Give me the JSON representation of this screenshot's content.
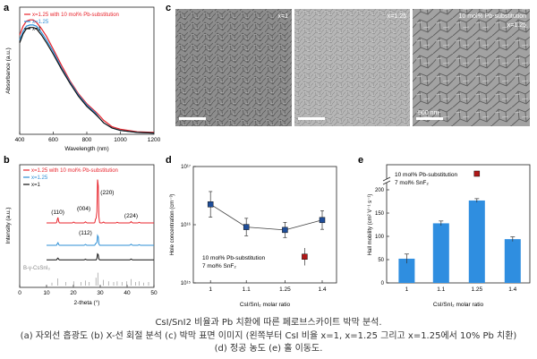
{
  "panels": {
    "a": "a",
    "b": "b",
    "c": "c",
    "d": "d",
    "e": "e"
  },
  "colors": {
    "red": "#e8232b",
    "blue": "#2d8fd6",
    "black": "#111111",
    "bar": "#2f8ee0",
    "square": "#1f4e9a",
    "square_red": "#b01818"
  },
  "sem": {
    "labels": [
      "x=1",
      "x=1.25",
      "10 mol% Pb-substitution"
    ],
    "sub_label": "x=1.25",
    "scale": "500 nm"
  },
  "captions": {
    "line1": "CsI/SnI2 비율과 Pb 치환에 따른 페로브스카이트 박막 분석.",
    "line2": "(a) 자외선 흡광도 (b) X-선 회절 분석 (c) 박막 표면 이미지 (왼쪽부터 CsI 비율 x=1, x=1.25 그리고 x=1.25에서 10% Pb 치환)",
    "line3": "(d) 정공 농도 (e) 홀 이동도."
  },
  "chart_data": [
    {
      "id": "a",
      "type": "line",
      "title": "",
      "xlabel": "Wavelength (nm)",
      "ylabel": "Absorbance (a.u.)",
      "xlim": [
        400,
        1200
      ],
      "xticks": [
        400,
        600,
        800,
        1000,
        1200
      ],
      "ylim": [
        0,
        1
      ],
      "legend": "top-left",
      "legend_labels": [
        "x=1.25 with 10 mol% Pb-substitution",
        "x=1.25",
        "x=1"
      ],
      "series": [
        {
          "name": "x=1.25 with 10 mol% Pb-substitution",
          "color": "#e8232b",
          "x": [
            400,
            420,
            440,
            460,
            480,
            500,
            530,
            560,
            600,
            650,
            700,
            750,
            800,
            850,
            880,
            900,
            950,
            1000,
            1100,
            1200
          ],
          "y": [
            0.78,
            0.85,
            0.89,
            0.9,
            0.9,
            0.88,
            0.83,
            0.77,
            0.67,
            0.54,
            0.42,
            0.32,
            0.24,
            0.18,
            0.14,
            0.11,
            0.06,
            0.04,
            0.02,
            0.015
          ]
        },
        {
          "name": "x=1.25",
          "color": "#2d8fd6",
          "x": [
            400,
            420,
            440,
            460,
            480,
            500,
            530,
            560,
            600,
            650,
            700,
            750,
            800,
            850,
            880,
            900,
            950,
            1000,
            1100,
            1200
          ],
          "y": [
            0.74,
            0.81,
            0.85,
            0.86,
            0.86,
            0.85,
            0.8,
            0.74,
            0.65,
            0.52,
            0.41,
            0.31,
            0.23,
            0.17,
            0.12,
            0.09,
            0.05,
            0.03,
            0.015,
            0.01
          ]
        },
        {
          "name": "x=1",
          "color": "#111111",
          "x": [
            400,
            420,
            440,
            460,
            480,
            500,
            530,
            560,
            600,
            650,
            700,
            750,
            800,
            850,
            880,
            900,
            950,
            1000,
            1100,
            1200
          ],
          "y": [
            0.72,
            0.79,
            0.83,
            0.84,
            0.84,
            0.83,
            0.78,
            0.72,
            0.63,
            0.51,
            0.4,
            0.3,
            0.22,
            0.16,
            0.12,
            0.09,
            0.05,
            0.03,
            0.015,
            0.01
          ]
        }
      ]
    },
    {
      "id": "b",
      "type": "line",
      "title": "",
      "xlabel": "2-theta (°)",
      "ylabel": "Intensity (a.u.)",
      "xlim": [
        0,
        50
      ],
      "xticks": [
        0,
        10,
        20,
        30,
        40,
        50
      ],
      "legend": "top-left",
      "legend_labels": [
        "x=1.25 with 10 mol% Pb-substitution",
        "x=1.25",
        "x=1"
      ],
      "ref_label": "B-γ-CsSnI₃",
      "peak_labels": [
        {
          "label": "(110)",
          "x": 14.2
        },
        {
          "label": "(112)",
          "x": 24.5
        },
        {
          "label": "(004)",
          "x": 28.4
        },
        {
          "label": "(220)",
          "x": 29.1
        },
        {
          "label": "(224)",
          "x": 41.5
        }
      ],
      "series": [
        {
          "name": "x=1.25 with 10 mol% Pb-substitution",
          "color": "#e8232b",
          "offset": 2,
          "peaks": [
            [
              14.2,
              0.25
            ],
            [
              20.1,
              0.04
            ],
            [
              24.5,
              0.05
            ],
            [
              28.4,
              0.22
            ],
            [
              29.1,
              2.2
            ],
            [
              31.2,
              0.04
            ],
            [
              36.3,
              0.03
            ],
            [
              41.5,
              0.06
            ],
            [
              44.5,
              0.03
            ]
          ]
        },
        {
          "name": "x=1.25",
          "color": "#2d8fd6",
          "offset": 1,
          "peaks": [
            [
              14.2,
              0.12
            ],
            [
              24.5,
              0.04
            ],
            [
              28.4,
              0.1
            ],
            [
              29.1,
              0.5
            ],
            [
              41.5,
              0.05
            ],
            [
              44.5,
              0.03
            ]
          ]
        },
        {
          "name": "x=1",
          "color": "#111111",
          "offset": 0.35,
          "peaks": [
            [
              14.2,
              0.08
            ],
            [
              24.5,
              0.03
            ],
            [
              29.1,
              0.3
            ],
            [
              41.5,
              0.04
            ]
          ]
        }
      ],
      "reference_peaks": [
        [
          12,
          0.2
        ],
        [
          14.2,
          0.5
        ],
        [
          17.2,
          0.25
        ],
        [
          20.1,
          0.3
        ],
        [
          22.8,
          0.25
        ],
        [
          24.5,
          0.35
        ],
        [
          25.9,
          0.25
        ],
        [
          28.4,
          0.55
        ],
        [
          29.1,
          0.9
        ],
        [
          31.2,
          0.4
        ],
        [
          33.1,
          0.3
        ],
        [
          35,
          0.25
        ],
        [
          36.3,
          0.3
        ],
        [
          38.1,
          0.25
        ],
        [
          39.9,
          0.3
        ],
        [
          41.5,
          0.45
        ],
        [
          43.2,
          0.25
        ],
        [
          44.5,
          0.3
        ],
        [
          46.2,
          0.2
        ],
        [
          48,
          0.25
        ]
      ]
    },
    {
      "id": "d",
      "type": "scatter",
      "title": "",
      "xlabel": "CsI/SnI₂ molar ratio",
      "ylabel": "Hole concentration (cm⁻³)",
      "yscale": "log",
      "ylim_exp": [
        15,
        17
      ],
      "yticks": [
        "10¹⁵",
        "10¹⁶",
        "10¹⁷"
      ],
      "categories": [
        "1",
        "1.1",
        "1.25",
        "1.4"
      ],
      "x": [
        1,
        1.1,
        1.25,
        1.4
      ],
      "y_exp": [
        16.35,
        15.96,
        15.91,
        16.08
      ],
      "err": [
        0.22,
        0.15,
        0.13,
        0.16
      ],
      "color": "#1f4e9a",
      "annotation": [
        "10 mol% Pb-substitution",
        "7 mol% SnF₂"
      ],
      "extra_point": {
        "x": 1.25,
        "y_exp": 15.45,
        "err": 0.15,
        "color": "#b01818"
      }
    },
    {
      "id": "e",
      "type": "bar",
      "title": "",
      "xlabel": "CsI/SnI₂ molar ratio",
      "ylabel": "Hall mobility (cm² V⁻¹ s⁻¹)",
      "ylim": [
        0,
        200
      ],
      "yticks": [
        0,
        50,
        100,
        150,
        200
      ],
      "axis_break": true,
      "categories": [
        "1",
        "1.1",
        "1.25",
        "1.4"
      ],
      "values": [
        52,
        128,
        177,
        94
      ],
      "err": [
        10,
        5,
        4,
        5
      ],
      "color": "#2f8ee0",
      "annotation": [
        "10 mol% Pb-substitution",
        "7 mol% SnF₂"
      ],
      "extra_point": {
        "label": "1.25",
        "color": "#b01818"
      }
    }
  ]
}
